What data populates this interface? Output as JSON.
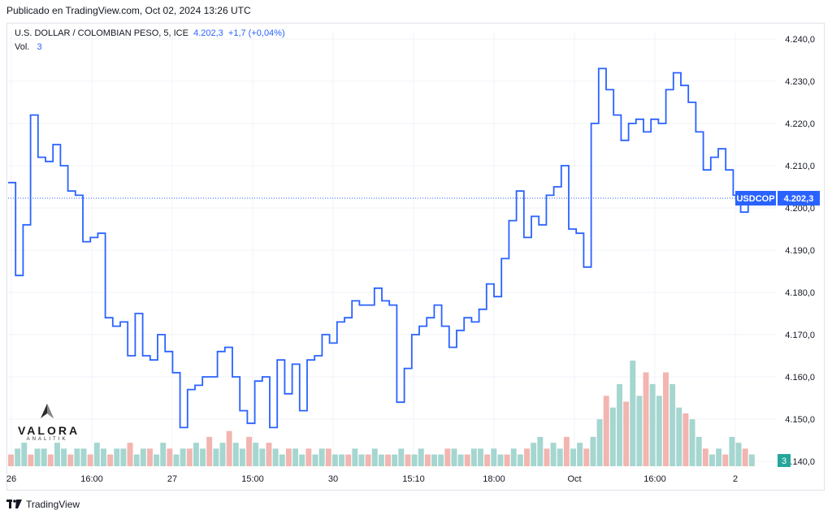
{
  "header": {
    "published": "Publicado en TradingView.com, Oct 02, 2024 13:26 UTC"
  },
  "legend": {
    "symbol": "U.S. DOLLAR / COLOMBIAN PESO, 5, ICE",
    "price": "4.202,3",
    "change": "+1,7 (+0,04%)",
    "vol_label": "Vol.",
    "vol_value": "3"
  },
  "watermark": {
    "name": "VALORA",
    "sub": "ANALITIK"
  },
  "footer": {
    "brand": "TradingView"
  },
  "colors": {
    "line": "#2962ff",
    "vol_up": "#a5d6d0",
    "vol_down": "#f2b5b0",
    "grid": "#f0f3fa",
    "badge": "#2962ff",
    "vol_badge": "#26a69a"
  },
  "chart_data": {
    "type": "line",
    "series": [
      {
        "name": "USDCOP",
        "x_index": [
          0,
          3,
          6,
          9,
          12,
          15,
          18,
          21,
          24,
          27,
          30,
          33,
          36,
          39,
          42,
          45,
          48,
          51,
          54,
          57,
          60,
          63,
          66,
          69,
          72,
          75,
          78,
          81,
          84,
          87,
          90,
          93,
          96,
          99,
          102,
          105,
          108,
          111,
          114,
          117,
          120,
          123,
          126,
          129,
          132,
          135,
          138,
          141,
          144,
          147,
          150,
          153,
          156,
          159,
          162,
          165,
          168,
          171,
          174,
          177,
          180,
          183,
          186,
          189,
          192,
          195,
          198,
          201,
          204,
          207,
          210,
          213,
          216,
          219,
          222,
          225,
          228,
          231,
          234,
          237,
          240,
          243,
          246,
          249,
          252,
          255,
          258,
          261,
          264,
          267,
          270,
          273,
          276,
          279,
          282,
          285,
          288,
          291,
          294,
          297,
          300
        ],
        "values": [
          4206,
          4184,
          4196,
          4222,
          4212,
          4211,
          4215,
          4210,
          4204,
          4203,
          4192,
          4193,
          4194,
          4174,
          4172,
          4173,
          4165,
          4175,
          4165,
          4164,
          4170,
          4166,
          4161,
          4148,
          4157,
          4158,
          4160,
          4160,
          4166,
          4167,
          4160,
          4152,
          4149,
          4159,
          4160,
          4148,
          4164,
          4156,
          4163,
          4152,
          4164,
          4165,
          4170,
          4168,
          4173,
          4174,
          4178,
          4177,
          4177,
          4181,
          4178,
          4177,
          4154,
          4162,
          4170,
          4172,
          4174,
          4177,
          4172,
          4167,
          4171,
          4174,
          4173,
          4176,
          4182,
          4179,
          4188,
          4197,
          4204,
          4193,
          4198,
          4196,
          4203,
          4205,
          4210,
          4195,
          4194,
          4186,
          4220,
          4233,
          4228,
          4222,
          4216,
          4220,
          4221,
          4218,
          4221,
          4220,
          4228,
          4232,
          4229,
          4225,
          4218,
          4209,
          4212,
          4214,
          4209,
          4203,
          4199,
          4201,
          4202.3
        ]
      }
    ],
    "volume": {
      "values": [
        2,
        3,
        4,
        2,
        3,
        3,
        2,
        4,
        3,
        2,
        3,
        3,
        2,
        4,
        3,
        2,
        3,
        3,
        4,
        2,
        3,
        3,
        2,
        4,
        3,
        2,
        3,
        3,
        4,
        3,
        5,
        3,
        4,
        6,
        4,
        3,
        5,
        4,
        3,
        4,
        3,
        2,
        3,
        3,
        2,
        3,
        2,
        3,
        3,
        2,
        2,
        2,
        3,
        2,
        2,
        3,
        2,
        2,
        2,
        3,
        2,
        2,
        3,
        2,
        2,
        2,
        3,
        3,
        2,
        2,
        3,
        3,
        2,
        3,
        2,
        2,
        3,
        2,
        3,
        4,
        5,
        3,
        4,
        3,
        5,
        3,
        4,
        3,
        5,
        8,
        12,
        10,
        14,
        11,
        18,
        12,
        16,
        14,
        12,
        16,
        14,
        10,
        9,
        8,
        5,
        3,
        2,
        3,
        2,
        5,
        4,
        3,
        2
      ],
      "last": 3
    },
    "x_ticks": [
      "26",
      "16:00",
      "27",
      "15:00",
      "30",
      "15:10",
      "18:00",
      "Oct",
      "16:00",
      "2"
    ],
    "y_ticks": [
      "4.240,0",
      "4.230,0",
      "4.220,0",
      "4.210,0",
      "4.200,0",
      "4.190,0",
      "4.180,0",
      "4.170,0",
      "4.160,0",
      "4.150,0",
      "4.140,0"
    ],
    "ylim": [
      4140,
      4240
    ],
    "last_price_label": "4.202,3",
    "symbol_badge": "USDCOP",
    "volume_badge": "3",
    "grid": true
  }
}
